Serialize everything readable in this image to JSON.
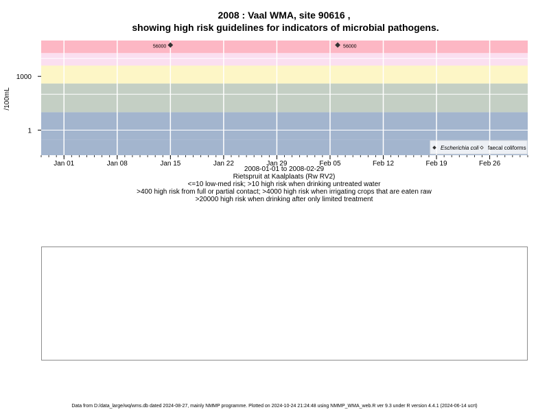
{
  "chart_data": {
    "type": "scatter",
    "title_line1": "2008 : Vaal WMA, site 90616 ,",
    "title_line2": "showing high risk guidelines for indicators of microbial pathogens.",
    "ylabel": "/100mL",
    "y_scale": "log10",
    "ylim": [
      0.04,
      100000
    ],
    "y_ticks": [
      {
        "value": 1,
        "label": "1"
      },
      {
        "value": 1000,
        "label": "1000"
      }
    ],
    "xlim": [
      "2007-12-29",
      "2008-03-02"
    ],
    "x_ticks": [
      {
        "date": "2008-01-01",
        "label": "Jan 01"
      },
      {
        "date": "2008-01-08",
        "label": "Jan 08"
      },
      {
        "date": "2008-01-15",
        "label": "Jan 15"
      },
      {
        "date": "2008-01-22",
        "label": "Jan 22"
      },
      {
        "date": "2008-01-29",
        "label": "Jan 29"
      },
      {
        "date": "2008-02-05",
        "label": "Feb 05"
      },
      {
        "date": "2008-02-12",
        "label": "Feb 12"
      },
      {
        "date": "2008-02-19",
        "label": "Feb 19"
      },
      {
        "date": "2008-02-26",
        "label": "Feb 26"
      }
    ],
    "bands": [
      {
        "from": 0.04,
        "to": 0.3,
        "color": "#a3b5ce"
      },
      {
        "from": 0.3,
        "to": 10,
        "color": "#a3b5ce"
      },
      {
        "from": 10,
        "to": 400,
        "color": "#c4cfc4"
      },
      {
        "from": 400,
        "to": 4000,
        "color": "#fdf6c6"
      },
      {
        "from": 4000,
        "to": 20000,
        "color": "#fbdff0"
      },
      {
        "from": 20000,
        "to": 100000,
        "color": "#fdb7c4"
      }
    ],
    "series": [
      {
        "name": "Escherichia coli",
        "marker": "filled-diamond",
        "color": "#333333",
        "points": [
          {
            "date": "2008-01-15",
            "value": 56000,
            "label": "56000"
          },
          {
            "date": "2008-02-06",
            "value": 56000,
            "label": "56000"
          }
        ]
      },
      {
        "name": "faecal coliforms",
        "marker": "open-diamond",
        "color": "#333333",
        "points": []
      }
    ],
    "legend_position": "bottom-right",
    "xlabel_lines": [
      "2008-01-01 to 2008-02-29",
      "Rietspruit at Kaalplaats (Rw RV2)",
      "<=10 low-med risk; >10 high risk when drinking untreated water",
      ">400 high risk from full or partial contact; >4000 high risk when irrigating crops that are eaten raw",
      ">20000 high risk when drinking after only limited treatment"
    ],
    "grid": true
  },
  "footer": "Data from D:/data_large/wq/wms.db dated 2024-08-27, mainly NMMP programme. Plotted on 2024-10-24 21:24:48 using NMMP_WMA_web.R ver 9.3 under R version 4.4.1 (2024-06-14 ucrt)"
}
